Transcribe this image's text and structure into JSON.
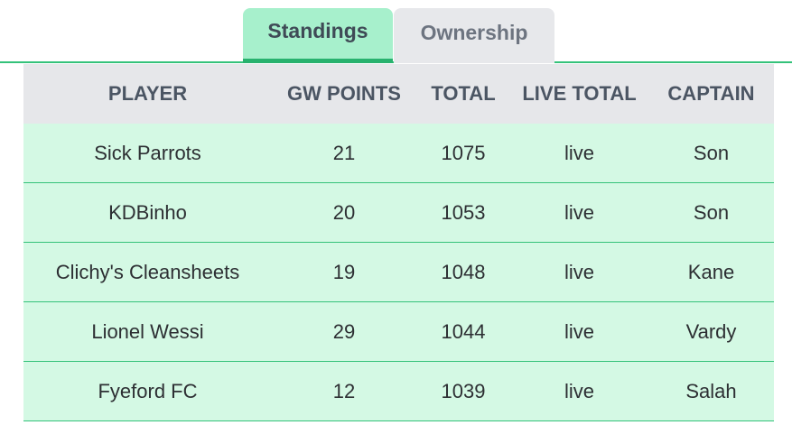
{
  "tabs": [
    {
      "label": "Standings",
      "active": true
    },
    {
      "label": "Ownership",
      "active": false
    }
  ],
  "table": {
    "headers": [
      "PLAYER",
      "GW POINTS",
      "TOTAL",
      "LIVE TOTAL",
      "CAPTAIN"
    ],
    "rows": [
      [
        "Sick Parrots",
        "21",
        "1075",
        "live",
        "Son"
      ],
      [
        "KDBinho",
        "20",
        "1053",
        "live",
        "Son"
      ],
      [
        "Clichy's Cleansheets",
        "19",
        "1048",
        "live",
        "Kane"
      ],
      [
        "Lionel Wessi",
        "29",
        "1044",
        "live",
        "Vardy"
      ],
      [
        "Fyeford FC",
        "12",
        "1039",
        "live",
        "Salah"
      ]
    ]
  },
  "colors": {
    "accent": "#34c27a",
    "active_tab_bg": "#a7f0cc",
    "inactive_tab_bg": "#e7e8eb",
    "header_bg": "#e6e7ea",
    "row_bg": "#d4f9e4"
  }
}
